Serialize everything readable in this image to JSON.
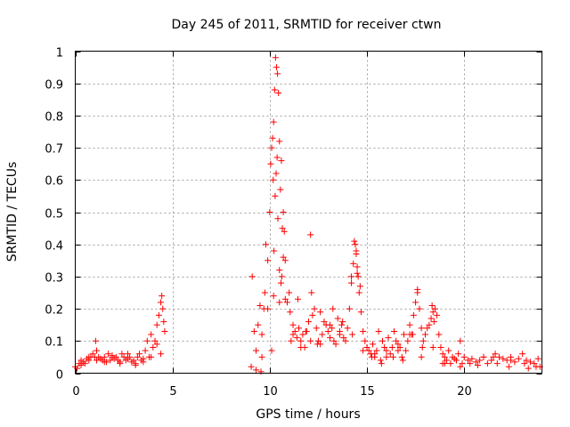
{
  "chart_data": {
    "type": "scatter",
    "title": "Day 245 of 2011, SRMTID for receiver ctwn",
    "xlabel": "GPS time / hours",
    "ylabel": "SRMTID / TECUs",
    "xlim": [
      0,
      24
    ],
    "ylim": [
      0,
      1
    ],
    "xticks": [
      0,
      5,
      10,
      15,
      20
    ],
    "xtick_labels": [
      "0",
      "5",
      "10",
      "15",
      "20"
    ],
    "yticks": [
      0,
      0.1,
      0.2,
      0.3,
      0.4,
      0.5,
      0.6,
      0.7,
      0.8,
      0.9,
      1
    ],
    "ytick_labels": [
      "0",
      "0.1",
      "0.2",
      "0.3",
      "0.4",
      "0.5",
      "0.6",
      "0.7",
      "0.8",
      "0.9",
      "1"
    ],
    "grid": true,
    "marker": "+",
    "marker_color": "#ff0000",
    "series": [
      {
        "name": "SRMTID",
        "x": [
          0.0,
          0.1,
          0.2,
          0.3,
          0.4,
          0.5,
          0.6,
          0.7,
          0.8,
          0.9,
          1.0,
          1.05,
          1.1,
          1.2,
          1.3,
          1.4,
          1.5,
          1.6,
          1.7,
          1.8,
          1.9,
          2.0,
          2.1,
          2.2,
          2.3,
          2.4,
          2.5,
          2.6,
          2.7,
          2.8,
          2.9,
          3.0,
          3.1,
          3.2,
          3.3,
          3.4,
          3.5,
          3.6,
          3.7,
          3.8,
          3.9,
          4.0,
          4.1,
          4.2,
          4.3,
          4.4,
          4.45,
          4.5,
          4.55,
          4.6,
          9.1,
          9.2,
          9.3,
          9.4,
          9.5,
          9.6,
          9.7,
          9.8,
          9.9,
          10.0,
          10.05,
          10.1,
          10.15,
          10.2,
          10.25,
          10.3,
          10.35,
          10.4,
          10.45,
          10.5,
          10.55,
          10.6,
          10.65,
          10.7,
          10.75,
          10.8,
          10.9,
          11.0,
          11.1,
          11.2,
          11.3,
          11.4,
          11.5,
          11.6,
          11.7,
          11.8,
          11.9,
          12.0,
          12.1,
          12.2,
          12.3,
          12.4,
          12.5,
          12.6,
          12.7,
          12.8,
          12.9,
          13.0,
          13.1,
          13.2,
          13.3,
          13.4,
          13.5,
          13.6,
          13.7,
          13.8,
          13.9,
          14.0,
          14.1,
          14.2,
          14.3,
          14.35,
          14.4,
          14.45,
          14.5,
          14.55,
          14.6,
          14.7,
          14.8,
          14.9,
          15.0,
          15.1,
          15.2,
          15.3,
          15.4,
          15.5,
          15.6,
          15.7,
          15.8,
          15.9,
          16.0,
          16.1,
          16.2,
          16.3,
          16.4,
          16.5,
          16.6,
          16.7,
          16.8,
          16.9,
          17.0,
          17.1,
          17.2,
          17.3,
          17.4,
          17.5,
          17.6,
          17.7,
          17.8,
          17.9,
          18.0,
          18.1,
          18.2,
          18.3,
          18.4,
          18.5,
          18.6,
          18.7,
          18.8,
          18.9,
          19.0,
          19.1,
          19.2,
          19.3,
          19.4,
          19.5,
          19.6,
          19.7,
          19.8,
          19.9,
          20.0,
          20.2,
          20.4,
          20.6,
          20.8,
          21.0,
          21.2,
          21.4,
          21.6,
          21.8,
          22.0,
          22.2,
          22.4,
          22.6,
          22.8,
          23.0,
          23.2,
          23.4,
          23.6,
          23.8,
          23.9,
          0.3,
          0.7,
          1.1,
          1.5,
          1.9,
          2.3,
          2.7,
          3.1,
          3.5,
          3.9,
          4.2,
          4.4,
          9.3,
          9.6,
          9.9,
          10.2,
          10.5,
          10.8,
          11.2,
          11.6,
          12.1,
          12.6,
          13.1,
          13.6,
          14.2,
          14.8,
          15.4,
          16.0,
          16.6,
          17.2,
          17.8,
          18.4,
          19.0,
          19.6,
          20.3,
          21.0,
          21.7,
          22.4,
          23.1,
          23.7,
          10.22,
          10.28,
          10.33,
          10.18,
          10.38,
          10.42,
          10.5,
          10.58,
          12.15,
          14.45,
          14.5,
          17.6,
          18.35,
          9.05,
          9.55,
          9.75,
          10.1,
          10.62,
          10.7,
          11.05,
          11.45,
          11.85,
          12.45,
          13.25,
          13.75,
          14.25,
          14.65,
          15.25,
          15.75,
          16.35,
          16.85,
          17.35,
          17.85,
          18.45,
          18.9,
          19.8,
          20.7,
          21.5,
          22.3,
          23.3
        ],
        "y": [
          0.02,
          0.015,
          0.03,
          0.04,
          0.035,
          0.03,
          0.045,
          0.04,
          0.05,
          0.06,
          0.05,
          0.1,
          0.04,
          0.05,
          0.045,
          0.04,
          0.05,
          0.035,
          0.06,
          0.04,
          0.05,
          0.045,
          0.05,
          0.04,
          0.035,
          0.06,
          0.05,
          0.04,
          0.045,
          0.05,
          0.035,
          0.04,
          0.03,
          0.05,
          0.06,
          0.04,
          0.035,
          0.07,
          0.1,
          0.05,
          0.12,
          0.08,
          0.1,
          0.15,
          0.18,
          0.22,
          0.24,
          0.2,
          0.16,
          0.13,
          0.3,
          0.13,
          0.07,
          0.15,
          0.21,
          0.05,
          0.2,
          0.4,
          0.35,
          0.5,
          0.65,
          0.7,
          0.73,
          0.78,
          0.88,
          0.98,
          0.95,
          0.93,
          0.87,
          0.72,
          0.57,
          0.66,
          0.45,
          0.5,
          0.44,
          0.35,
          0.22,
          0.25,
          0.1,
          0.15,
          0.13,
          0.11,
          0.14,
          0.1,
          0.12,
          0.08,
          0.13,
          0.16,
          0.43,
          0.18,
          0.2,
          0.14,
          0.1,
          0.19,
          0.12,
          0.16,
          0.15,
          0.13,
          0.11,
          0.14,
          0.1,
          0.09,
          0.17,
          0.12,
          0.15,
          0.11,
          0.1,
          0.14,
          0.2,
          0.28,
          0.34,
          0.41,
          0.4,
          0.37,
          0.33,
          0.3,
          0.25,
          0.19,
          0.13,
          0.1,
          0.08,
          0.07,
          0.06,
          0.09,
          0.05,
          0.07,
          0.13,
          0.04,
          0.1,
          0.08,
          0.07,
          0.11,
          0.06,
          0.08,
          0.13,
          0.1,
          0.07,
          0.08,
          0.05,
          0.12,
          0.07,
          0.1,
          0.15,
          0.12,
          0.18,
          0.22,
          0.26,
          0.2,
          0.14,
          0.1,
          0.12,
          0.14,
          0.15,
          0.17,
          0.19,
          0.2,
          0.18,
          0.12,
          0.08,
          0.06,
          0.05,
          0.04,
          0.07,
          0.03,
          0.05,
          0.045,
          0.04,
          0.06,
          0.1,
          0.03,
          0.05,
          0.04,
          0.045,
          0.035,
          0.04,
          0.05,
          0.03,
          0.04,
          0.06,
          0.05,
          0.045,
          0.04,
          0.05,
          0.035,
          0.045,
          0.06,
          0.04,
          0.035,
          0.03,
          0.045,
          0.02,
          0.025,
          0.05,
          0.07,
          0.035,
          0.055,
          0.03,
          0.06,
          0.025,
          0.045,
          0.05,
          0.09,
          0.06,
          0.01,
          0.12,
          0.2,
          0.24,
          0.22,
          0.23,
          0.12,
          0.08,
          0.1,
          0.09,
          0.15,
          0.13,
          0.3,
          0.07,
          0.06,
          0.05,
          0.09,
          0.12,
          0.05,
          0.08,
          0.03,
          0.04,
          0.03,
          0.05,
          0.03,
          0.04,
          0.03,
          0.02,
          0.38,
          0.55,
          0.62,
          0.6,
          0.67,
          0.48,
          0.32,
          0.28,
          0.25,
          0.38,
          0.31,
          0.25,
          0.21,
          0.02,
          0.005,
          0.25,
          0.07,
          0.3,
          0.36,
          0.19,
          0.23,
          0.13,
          0.09,
          0.2,
          0.16,
          0.12,
          0.27,
          0.05,
          0.03,
          0.05,
          0.04,
          0.12,
          0.08,
          0.16,
          0.03,
          0.02,
          0.025,
          0.05,
          0.02,
          0.015
        ]
      }
    ]
  }
}
